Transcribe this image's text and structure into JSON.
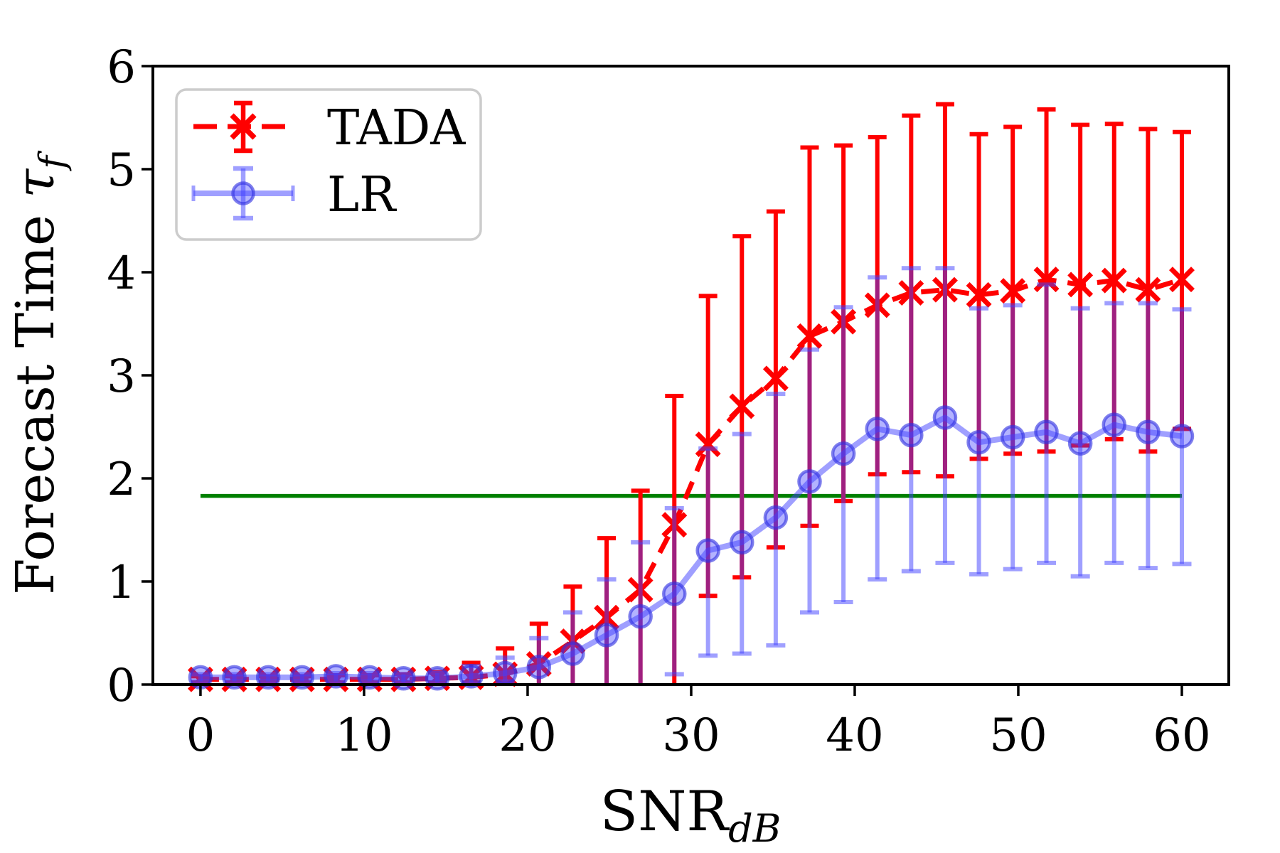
{
  "figure": {
    "background": "#ffffff",
    "colors": {
      "tada": "#ff0000",
      "lr": "#4040ff",
      "lr_line": "rgba(64,64,255,0.5)",
      "lr_fill": "rgba(64,64,255,0.4)",
      "lr_edge": "rgba(48,48,224,0.62)",
      "threshold": "#008000",
      "axis": "#000000",
      "legend_border": "#cccccc"
    },
    "legend": {
      "items": [
        {
          "label": "TADA"
        },
        {
          "label": "LR"
        }
      ]
    },
    "x_axis": {
      "label": "SNR",
      "label_sub": "dB",
      "ticks": [
        "0",
        "10",
        "20",
        "30",
        "40",
        "50",
        "60"
      ],
      "tick_values": [
        0,
        10,
        20,
        30,
        40,
        50,
        60
      ]
    },
    "y_axis": {
      "label": "Forecast Time ",
      "label_tau": "τ",
      "label_sub": "f",
      "ticks": [
        "0",
        "1",
        "2",
        "3",
        "4",
        "5",
        "6"
      ],
      "tick_values": [
        0,
        1,
        2,
        3,
        4,
        5,
        6
      ]
    }
  },
  "chart_data": {
    "type": "line",
    "title": "",
    "xlabel": "SNR_dB",
    "ylabel": "Forecast Time tau_f",
    "grid": false,
    "legend_position": "upper left",
    "xlim": [
      -2.91,
      62.87
    ],
    "ylim": [
      0,
      6
    ],
    "x": [
      0,
      2.07,
      4.14,
      6.21,
      8.28,
      10.34,
      12.41,
      14.48,
      16.55,
      18.62,
      20.69,
      22.76,
      24.83,
      26.9,
      28.97,
      31.03,
      33.1,
      35.17,
      37.24,
      39.31,
      41.38,
      43.45,
      45.52,
      47.59,
      49.66,
      51.72,
      53.79,
      55.86,
      57.93,
      60
    ],
    "series": [
      {
        "name": "TADA",
        "color": "#ff0000",
        "line_style": "dashed",
        "marker": "x",
        "values": [
          0.05,
          0.05,
          0.05,
          0.05,
          0.05,
          0.05,
          0.05,
          0.06,
          0.07,
          0.1,
          0.2,
          0.42,
          0.65,
          0.92,
          1.55,
          2.33,
          2.7,
          2.97,
          3.38,
          3.52,
          3.68,
          3.8,
          3.83,
          3.78,
          3.82,
          3.93,
          3.88,
          3.92,
          3.83,
          3.93
        ],
        "err_lower": [
          0.02,
          0.02,
          0.02,
          0.02,
          0.02,
          0.02,
          0.02,
          0.02,
          0.02,
          0.02,
          0,
          0,
          0,
          0,
          0,
          0.86,
          1.04,
          1.33,
          1.54,
          1.78,
          2.04,
          2.06,
          2.02,
          2.19,
          2.24,
          2.26,
          2.32,
          2.38,
          2.26,
          2.48
        ],
        "err_upper": [
          0.08,
          0.08,
          0.08,
          0.08,
          0.09,
          0.09,
          0.1,
          0.12,
          0.21,
          0.35,
          0.59,
          0.95,
          1.42,
          1.88,
          2.8,
          3.77,
          4.35,
          4.59,
          5.21,
          5.23,
          5.31,
          5.52,
          5.63,
          5.34,
          5.41,
          5.58,
          5.43,
          5.44,
          5.39,
          5.36
        ]
      },
      {
        "name": "LR",
        "color": "#0000ff",
        "opacity": 0.5,
        "line_style": "solid",
        "marker": "circle",
        "values": [
          0.07,
          0.07,
          0.07,
          0.07,
          0.08,
          0.07,
          0.06,
          0.06,
          0.08,
          0.11,
          0.17,
          0.3,
          0.48,
          0.66,
          0.88,
          1.3,
          1.38,
          1.62,
          1.97,
          2.24,
          2.48,
          2.42,
          2.59,
          2.35,
          2.4,
          2.45,
          2.34,
          2.52,
          2.45,
          2.41
        ],
        "err_lower": [
          0.03,
          0.03,
          0.03,
          0.03,
          0.03,
          0.03,
          0.02,
          0.02,
          0.02,
          0.03,
          0,
          0,
          0,
          0,
          0.1,
          0.28,
          0.3,
          0.38,
          0.7,
          0.8,
          1.02,
          1.1,
          1.18,
          1.07,
          1.12,
          1.18,
          1.05,
          1.18,
          1.13,
          1.17
        ],
        "err_upper": [
          0.1,
          0.1,
          0.1,
          0.1,
          0.11,
          0.11,
          0.1,
          0.11,
          0.18,
          0.26,
          0.45,
          0.7,
          1.02,
          1.38,
          1.71,
          2.29,
          2.43,
          2.82,
          3.25,
          3.66,
          3.95,
          4.04,
          4.04,
          3.65,
          3.68,
          3.88,
          3.65,
          3.7,
          3.7,
          3.64
        ]
      }
    ],
    "threshold_line": {
      "y": 1.83,
      "color": "#008000",
      "x_start": 0,
      "x_end": 60
    }
  }
}
